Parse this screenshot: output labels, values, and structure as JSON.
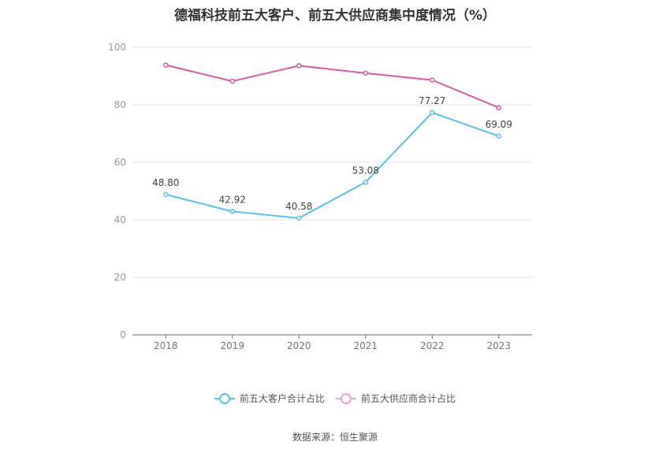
{
  "chart_data": {
    "type": "line",
    "title": "德福科技前五大客户、前五大供应商集中度情况（%）",
    "categories": [
      "2018",
      "2019",
      "2020",
      "2021",
      "2022",
      "2023"
    ],
    "series": [
      {
        "name": "前五大客户合计占比",
        "color": "#5bc0eb",
        "values": [
          48.8,
          42.92,
          40.58,
          53.08,
          77.27,
          69.09
        ],
        "labels": [
          "48.80",
          "42.92",
          "40.58",
          "53.08",
          "77.27",
          "69.09"
        ]
      },
      {
        "name": "前五大供应商合计占比",
        "color": "#d45fa6",
        "values": [
          93.8,
          88.2,
          93.6,
          91.0,
          88.6,
          79.0
        ]
      }
    ],
    "ylim": [
      0,
      100
    ],
    "yticks": [
      "0",
      "20",
      "40",
      "60",
      "80",
      "100"
    ],
    "grid": true,
    "legend_position": "bottom"
  },
  "source": "数据来源：恒生聚源"
}
